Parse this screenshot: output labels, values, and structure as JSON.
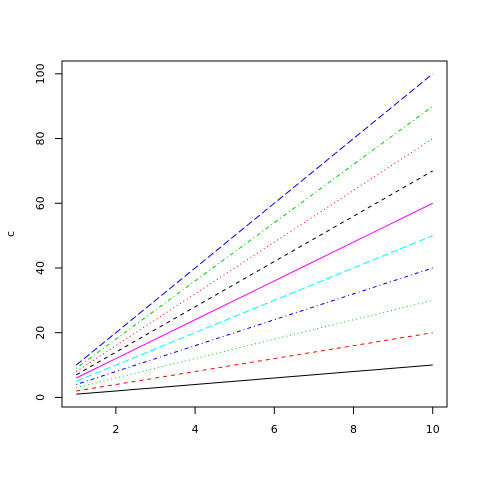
{
  "chart_data": {
    "type": "line",
    "ylabel": "c",
    "x": [
      1,
      2,
      3,
      4,
      5,
      6,
      7,
      8,
      9,
      10
    ],
    "series": [
      {
        "color": "#000000",
        "dash": "solid",
        "values": [
          1,
          2,
          3,
          4,
          5,
          6,
          7,
          8,
          9,
          10
        ]
      },
      {
        "color": "#ff0000",
        "dash": "dashed",
        "values": [
          2,
          4,
          6,
          8,
          10,
          12,
          14,
          16,
          18,
          20
        ]
      },
      {
        "color": "#00cd00",
        "dash": "dotted",
        "values": [
          3,
          6,
          9,
          12,
          15,
          18,
          21,
          24,
          27,
          30
        ]
      },
      {
        "color": "#0000ff",
        "dash": "dotdash",
        "values": [
          4,
          8,
          12,
          16,
          20,
          24,
          28,
          32,
          36,
          40
        ]
      },
      {
        "color": "#00ffff",
        "dash": "longdash",
        "values": [
          5,
          10,
          15,
          20,
          25,
          30,
          35,
          40,
          45,
          50
        ]
      },
      {
        "color": "#ff00ff",
        "dash": "solid",
        "values": [
          6,
          12,
          18,
          24,
          30,
          36,
          42,
          48,
          54,
          60
        ]
      },
      {
        "color": "#000000",
        "dash": "dashed",
        "values": [
          7,
          14,
          21,
          28,
          35,
          42,
          49,
          56,
          63,
          70
        ]
      },
      {
        "color": "#ff0000",
        "dash": "dotted",
        "values": [
          8,
          16,
          24,
          32,
          40,
          48,
          56,
          64,
          72,
          80
        ]
      },
      {
        "color": "#00cd00",
        "dash": "dotdash",
        "values": [
          9,
          18,
          27,
          36,
          45,
          54,
          63,
          72,
          81,
          90
        ]
      },
      {
        "color": "#0000ff",
        "dash": "longdash",
        "values": [
          10,
          20,
          30,
          40,
          50,
          60,
          70,
          80,
          90,
          100
        ]
      }
    ],
    "xlim": [
      0.64,
      10.36
    ],
    "ylim": [
      -2.96,
      103.96
    ],
    "xticks": [
      2,
      4,
      6,
      8,
      10
    ],
    "yticks": [
      0,
      20,
      40,
      60,
      80,
      100
    ]
  }
}
